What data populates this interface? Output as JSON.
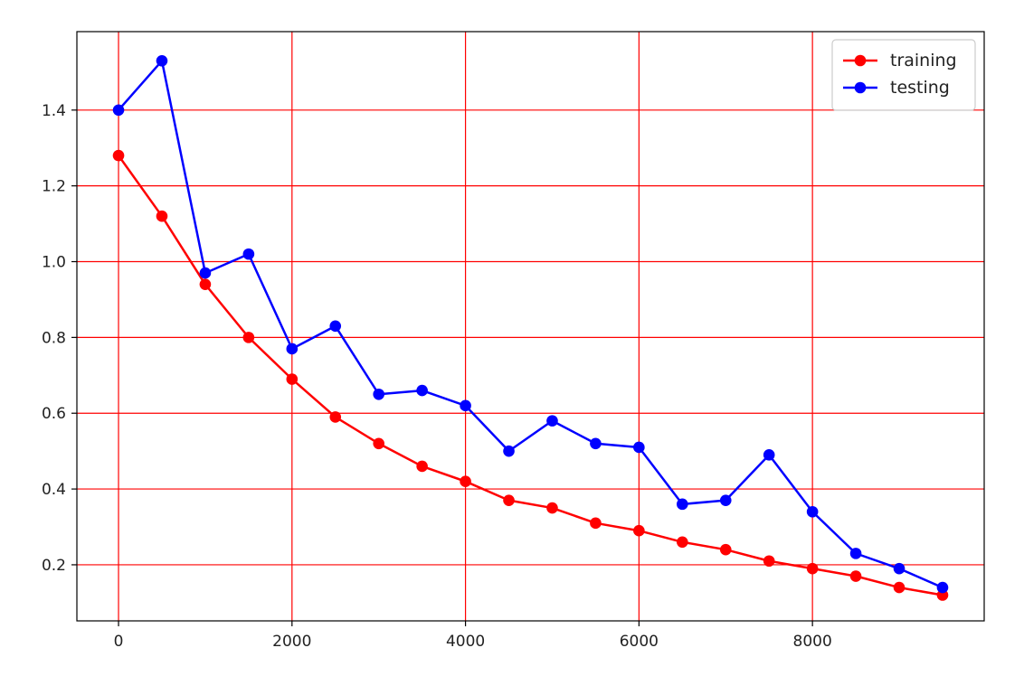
{
  "chart_data": {
    "type": "line",
    "title": "",
    "xlabel": "",
    "ylabel": "",
    "xlim": [
      -480,
      9980
    ],
    "ylim": [
      0.052,
      1.607
    ],
    "xticks": [
      0,
      2000,
      4000,
      6000,
      8000
    ],
    "xtick_labels": [
      "0",
      "2000",
      "4000",
      "6000",
      "8000"
    ],
    "yticks": [
      0.2,
      0.4,
      0.6,
      0.8,
      1.0,
      1.2,
      1.4
    ],
    "ytick_labels": [
      "0.2",
      "0.4",
      "0.6",
      "0.8",
      "1.0",
      "1.2",
      "1.4"
    ],
    "grid": true,
    "grid_color": "#ff0000",
    "legend_position": "top-right",
    "x": [
      0,
      500,
      1000,
      1500,
      2000,
      2500,
      3000,
      3500,
      4000,
      4500,
      5000,
      5500,
      6000,
      6500,
      7000,
      7500,
      8000,
      8500,
      9000,
      9500
    ],
    "series": [
      {
        "name": "training",
        "color": "#ff0000",
        "marker": "circle",
        "values": [
          1.28,
          1.12,
          0.94,
          0.8,
          0.69,
          0.59,
          0.52,
          0.46,
          0.42,
          0.37,
          0.35,
          0.31,
          0.29,
          0.26,
          0.24,
          0.21,
          0.19,
          0.17,
          0.14,
          0.12
        ]
      },
      {
        "name": "testing",
        "color": "#0000ff",
        "marker": "circle",
        "values": [
          1.4,
          1.53,
          0.97,
          1.02,
          0.77,
          0.83,
          0.65,
          0.66,
          0.62,
          0.5,
          0.58,
          0.52,
          0.51,
          0.36,
          0.37,
          0.49,
          0.34,
          0.23,
          0.19,
          0.14
        ]
      }
    ]
  }
}
